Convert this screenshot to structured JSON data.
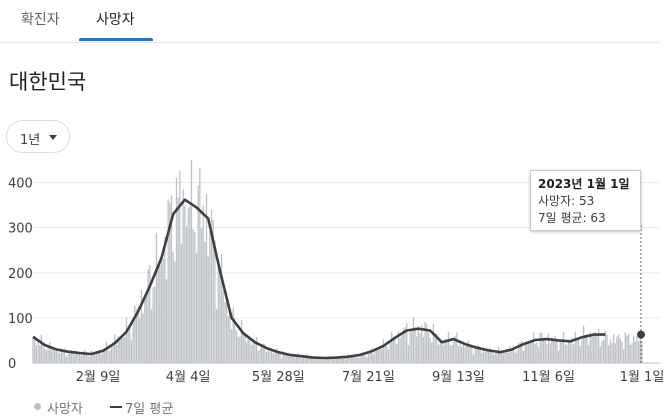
{
  "tabs": [
    "확진자",
    "사망자"
  ],
  "active_tab": 1,
  "region": "대한민국",
  "period": "1년",
  "tooltip": {
    "date": "2023년 1월 1일",
    "deaths_line": "사망자: 53",
    "avg_line": "7일 평균: 63"
  },
  "legend": {
    "bars": "사망자",
    "line": "7일 평균"
  },
  "colors": {
    "bars": "#bdc1c6",
    "line": "#3c4043",
    "accent": "#1a73e8",
    "grid": "#e8eaed"
  },
  "chart_data": {
    "type": "bar",
    "title": "",
    "xlabel": "",
    "ylabel": "",
    "x_start": "2022-01-01",
    "x_end": "2023-01-01",
    "ylim": [
      0,
      450
    ],
    "yticks": [
      0,
      100,
      200,
      300,
      400
    ],
    "xticks": [
      {
        "label": "2월 9일",
        "date": "2022-02-09"
      },
      {
        "label": "4월 4일",
        "date": "2022-04-04"
      },
      {
        "label": "5월 28일",
        "date": "2022-05-28"
      },
      {
        "label": "7월 21일",
        "date": "2022-07-21"
      },
      {
        "label": "9월 13일",
        "date": "2022-09-13"
      },
      {
        "label": "11월 6일",
        "date": "2022-11-06"
      },
      {
        "label": "1월 1일",
        "date": "2023-01-01"
      }
    ],
    "series": [
      {
        "name": "사망자",
        "kind": "bar",
        "sample_every_days": 7,
        "values": [
          56,
          38,
          29,
          24,
          22,
          21,
          29,
          47,
          71,
          118,
          173,
          237,
          332,
          357,
          344,
          318,
          200,
          95,
          64,
          45,
          32,
          23,
          18,
          15,
          12,
          11,
          12,
          14,
          17,
          25,
          37,
          55,
          73,
          77,
          71,
          47,
          53,
          41,
          33,
          27,
          24,
          31,
          42,
          52,
          54,
          50,
          48,
          58,
          64,
          53
        ]
      },
      {
        "name": "7일 평균",
        "kind": "line",
        "sample_every_days": 7,
        "values": [
          58,
          40,
          30,
          25,
          22,
          20,
          27,
          44,
          69,
          114,
          170,
          233,
          330,
          362,
          345,
          320,
          205,
          100,
          66,
          46,
          33,
          24,
          18,
          15,
          12,
          11,
          12,
          14,
          18,
          26,
          38,
          56,
          72,
          76,
          72,
          46,
          53,
          42,
          34,
          28,
          24,
          30,
          42,
          51,
          53,
          50,
          48,
          57,
          63,
          63
        ]
      }
    ],
    "highlight": {
      "date": "2023-01-01",
      "deaths": 53,
      "avg": 63
    }
  }
}
